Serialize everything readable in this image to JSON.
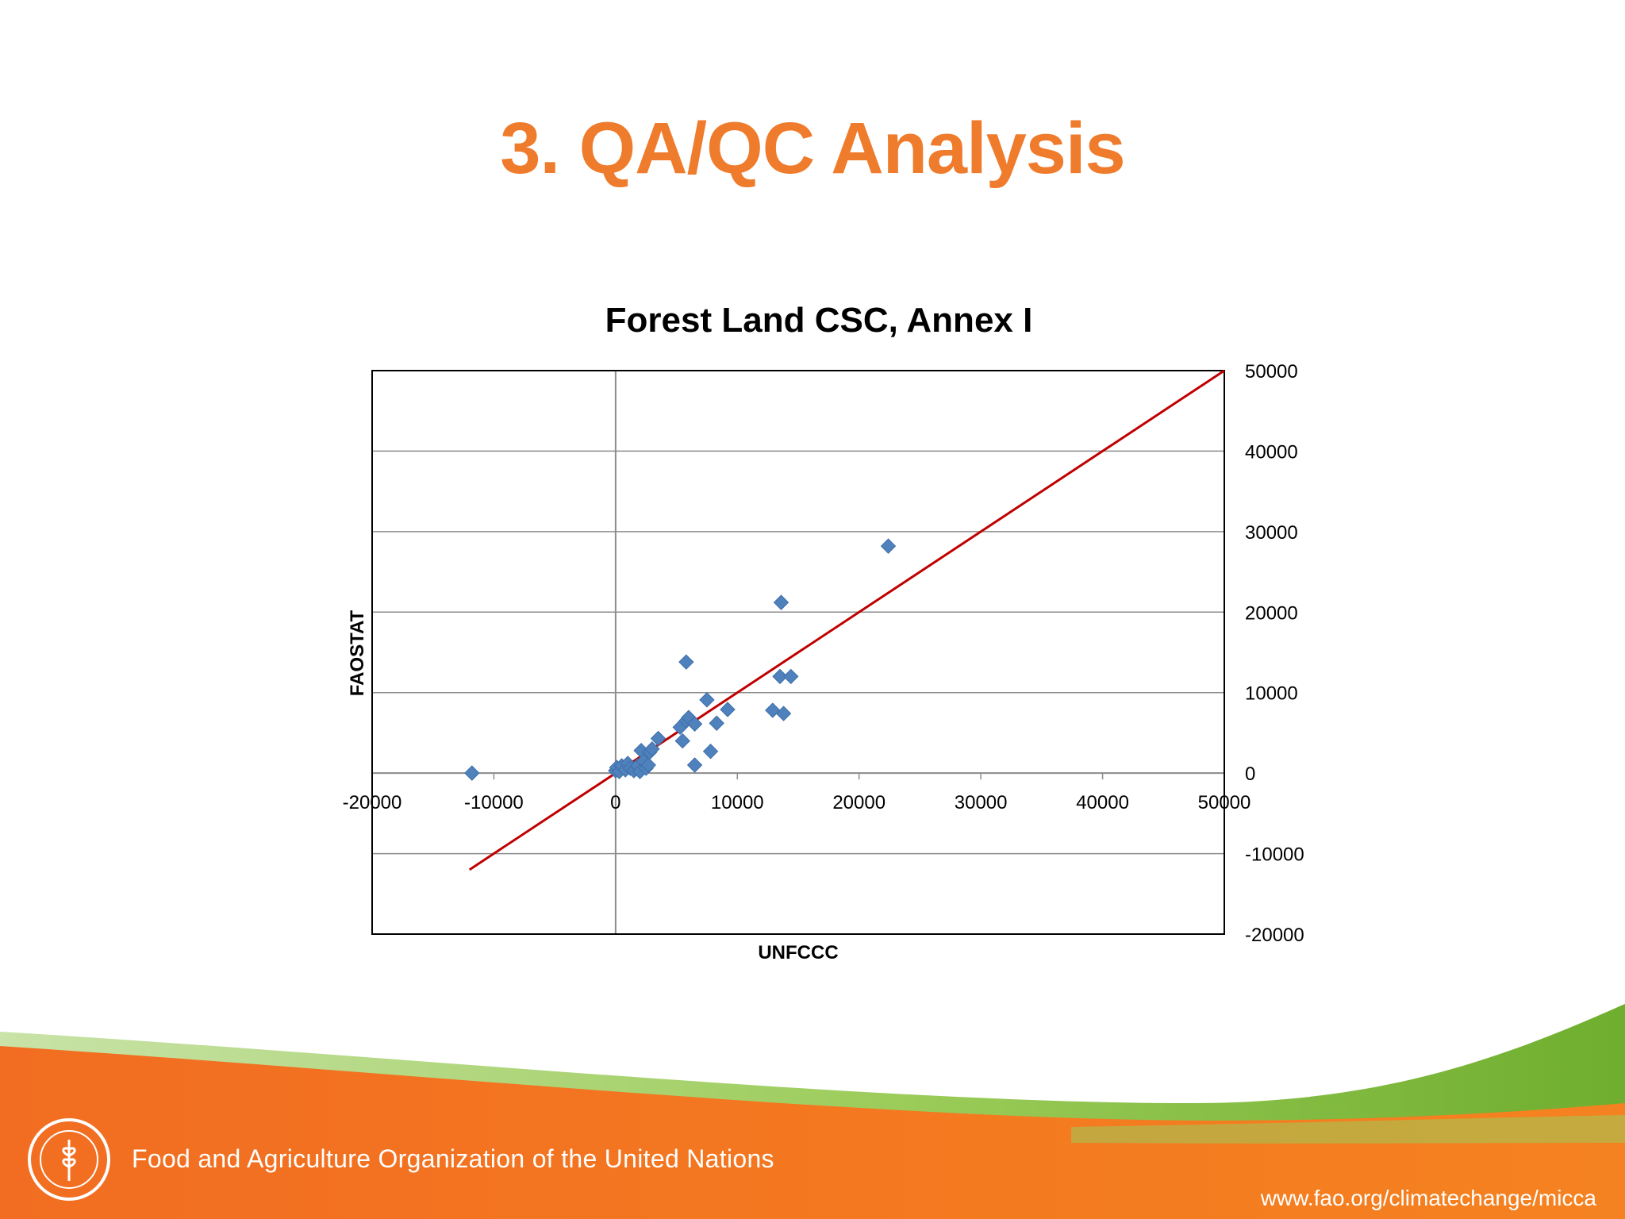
{
  "slide": {
    "title": "3. QA/QC Analysis"
  },
  "footer": {
    "organization": "Food and Agriculture Organization of the United Nations",
    "url": "www.fao.org/climatechange/micca",
    "logo_text": "FAO",
    "logo_motto": "FIAT PANIS"
  },
  "colors": {
    "title": "#ef7b2c",
    "marker": "#4f81bd",
    "trend_line": "#c00000",
    "footer_orange": "#f26d21",
    "footer_green": "#8cc63f"
  },
  "chart_data": {
    "type": "scatter",
    "title": "Forest Land CSC, Annex I",
    "xlabel": "UNFCCC",
    "ylabel": "FAOSTAT",
    "xlim": [
      -20000,
      50000
    ],
    "ylim": [
      -20000,
      50000
    ],
    "x_ticks": [
      -20000,
      -10000,
      0,
      10000,
      20000,
      30000,
      40000,
      50000
    ],
    "y_ticks": [
      -20000,
      -10000,
      0,
      10000,
      20000,
      30000,
      40000,
      50000
    ],
    "grid": "horizontal",
    "legend": "none",
    "reference_line": {
      "from": [
        -12000,
        -12000
      ],
      "to": [
        50000,
        50000
      ],
      "color": "#c00000"
    },
    "series": [
      {
        "marker": "diamond",
        "points": [
          [
            -11800,
            0
          ],
          [
            0,
            300
          ],
          [
            100,
            700
          ],
          [
            300,
            200
          ],
          [
            500,
            900
          ],
          [
            800,
            400
          ],
          [
            1000,
            1200
          ],
          [
            1200,
            600
          ],
          [
            1500,
            300
          ],
          [
            1800,
            900
          ],
          [
            2000,
            200
          ],
          [
            2100,
            2800
          ],
          [
            2300,
            1500
          ],
          [
            2500,
            600
          ],
          [
            2700,
            1000
          ],
          [
            2800,
            2600
          ],
          [
            3000,
            3000
          ],
          [
            3500,
            4300
          ],
          [
            5300,
            5700
          ],
          [
            5500,
            4000
          ],
          [
            5800,
            6500
          ],
          [
            5800,
            13800
          ],
          [
            6000,
            6900
          ],
          [
            6500,
            6100
          ],
          [
            6500,
            1000
          ],
          [
            7500,
            9100
          ],
          [
            7800,
            2700
          ],
          [
            8300,
            6200
          ],
          [
            9200,
            7900
          ],
          [
            12900,
            7800
          ],
          [
            13500,
            12000
          ],
          [
            13600,
            21200
          ],
          [
            13800,
            7400
          ],
          [
            14400,
            12000
          ],
          [
            22400,
            28200
          ]
        ]
      }
    ]
  }
}
